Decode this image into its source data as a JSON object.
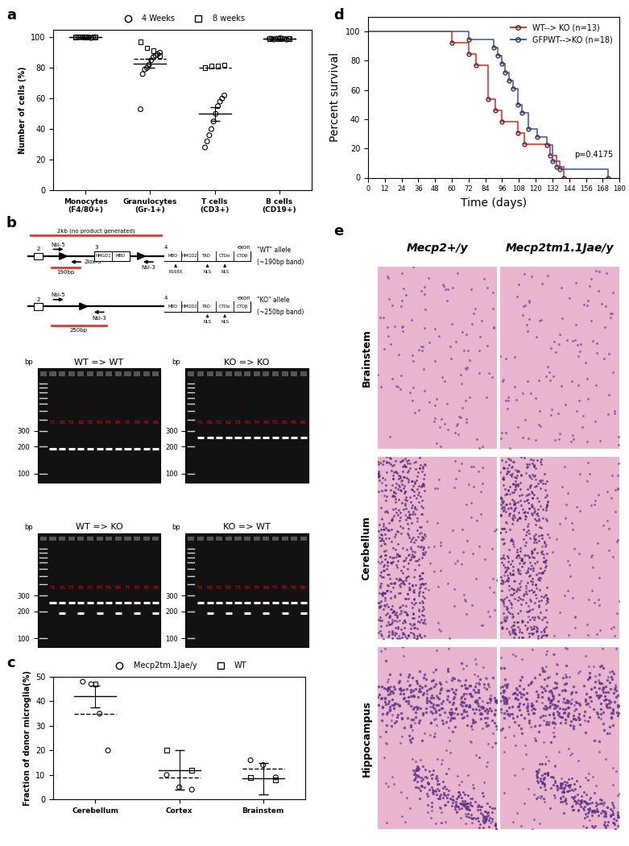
{
  "chart_data": [
    {
      "panel": "a",
      "type": "scatter",
      "categories": [
        "Monocytes (F4/80+)",
        "Granulocytes (Gr-1+)",
        "T cells (CD3+)",
        "B cells (CD19+)"
      ],
      "ylabel": "Number of cells (%)",
      "ylim": [
        0,
        105
      ],
      "yticks": [
        0,
        20,
        40,
        60,
        80,
        100
      ],
      "legend": "top",
      "series": [
        {
          "name": "4 Weeks",
          "marker": "circle",
          "color": "#000000",
          "line_style": "solid",
          "values": [
            [
              100,
              100,
              100,
              100,
              100,
              100,
              100,
              99.5,
              100,
              100
            ],
            [
              53,
              76,
              79,
              80,
              82,
              85,
              87,
              88,
              89,
              90
            ],
            [
              28,
              32,
              36,
              40,
              45,
              50,
              55,
              58,
              60,
              62
            ],
            [
              99,
              99,
              98.5,
              99,
              99,
              99.5,
              99,
              99,
              98.5,
              99
            ]
          ],
          "mean": [
            100,
            83,
            50,
            99
          ],
          "error": [
            0.2,
            3,
            4.5,
            0.3
          ]
        },
        {
          "name": "8 weeks",
          "marker": "square",
          "color": "#000000",
          "line_style": "dashed",
          "values": [
            [
              100,
              100,
              100
            ],
            [
              97,
              93,
              91,
              88
            ],
            [
              80,
              81,
              81,
              82
            ],
            [
              99,
              99,
              99
            ]
          ],
          "mean": [
            100,
            86,
            80,
            99
          ]
        }
      ]
    },
    {
      "panel": "c",
      "type": "scatter",
      "categories": [
        "Cerebellum",
        "Cortex",
        "Brainstem"
      ],
      "ylabel": "Fraction of donor microglia(%)",
      "ylim": [
        0,
        50
      ],
      "yticks": [
        0,
        10,
        20,
        30,
        40,
        50
      ],
      "legend": "top",
      "series": [
        {
          "name": "Mecp2tm.1Jae/y",
          "marker": "circle",
          "color": "#000000",
          "line_style": "solid",
          "values": [
            [
              48,
              47,
              35,
              20
            ],
            [
              10,
              5,
              4
            ],
            [
              16,
              14,
              9
            ]
          ],
          "mean": [
            42,
            12,
            8.5
          ],
          "error": [
            4.5,
            8,
            6.5
          ]
        },
        {
          "name": "WT",
          "marker": "square",
          "color": "#000000",
          "line_style": "dashed",
          "values": [
            [
              47
            ],
            [
              20,
              12
            ],
            [
              9,
              8
            ]
          ],
          "mean": [
            35,
            9,
            12.5
          ]
        }
      ]
    },
    {
      "panel": "d",
      "type": "line",
      "xlabel": "Time (days)",
      "ylabel": "Percent survival",
      "xlim": [
        0,
        180
      ],
      "xticks": [
        0,
        12,
        24,
        36,
        48,
        60,
        72,
        84,
        96,
        108,
        120,
        132,
        144,
        156,
        168,
        180
      ],
      "ylim": [
        0,
        110
      ],
      "yticks": [
        0,
        20,
        40,
        60,
        80,
        100
      ],
      "legend": "upper right",
      "annotation": "p=0.4175",
      "series": [
        {
          "name": "WT--> KO (n=13)",
          "color": "#e8352b",
          "marker": "circle",
          "line_style": "steps",
          "x": [
            0,
            60,
            72,
            77,
            86,
            91,
            96,
            107,
            112,
            130,
            135,
            140
          ],
          "values": [
            100,
            92.3,
            84.6,
            76.9,
            53.8,
            46.2,
            38.5,
            30.8,
            23.1,
            15.4,
            7.7,
            0
          ]
        },
        {
          "name": "GFPWT-->KO (n=18)",
          "color": "#4a5fb5",
          "marker": "circle",
          "line_style": "steps",
          "x": [
            0,
            72,
            90,
            93,
            96,
            98,
            101,
            104,
            107,
            110,
            115,
            121,
            128,
            132,
            137,
            172
          ],
          "values": [
            100,
            94.4,
            88.9,
            83.3,
            77.8,
            72.2,
            66.7,
            61.1,
            50,
            44.4,
            33.3,
            27.8,
            22.2,
            11.1,
            5.6,
            0
          ]
        }
      ]
    }
  ],
  "diagram_b": {
    "panel": "b",
    "no_product": "2kb (no product generated)",
    "wt_allele": [
      "\"WT\" allele",
      "(~190bp band)"
    ],
    "ko_allele": [
      "\"KO\" allele",
      "(~250bp band)"
    ],
    "primers": [
      "Nsi-5",
      "2lox-3",
      "Nsi-3"
    ],
    "wt_product": "190bp",
    "ko_product": "250bp",
    "exons": [
      "2",
      "3",
      "4"
    ],
    "exon3_domains": [
      "HMGD1",
      "MBD"
    ],
    "exon4_domains": [
      "MBD",
      "HMGD2",
      "TRD",
      "CTDα",
      "CTDβ"
    ],
    "exon_label": "exon",
    "mutation": "R168X",
    "nls": "NLS"
  },
  "gels_b": {
    "unit": "bp",
    "ylim": [
      80,
      1500
    ],
    "ladder_ticks": [
      100,
      200,
      300
    ],
    "ladder": [
      100,
      200,
      300,
      400,
      500,
      600,
      700,
      800,
      900,
      1000
    ],
    "lanes": [
      "T1",
      "B1",
      "T2",
      "B2",
      "T3",
      "B3",
      "T4",
      "B4",
      "T5",
      "B5",
      "T6",
      "B6"
    ],
    "gels": [
      {
        "title": "WT => WT",
        "bands": [
          [
            190
          ],
          [
            190
          ],
          [
            190
          ],
          [
            190
          ],
          [
            190
          ],
          [
            190
          ],
          [
            190
          ],
          [
            190
          ],
          [
            190
          ],
          [
            190
          ],
          [
            190
          ],
          [
            190
          ]
        ]
      },
      {
        "title": "KO => KO",
        "bands": [
          [
            250
          ],
          [
            250
          ],
          [
            250
          ],
          [
            250
          ],
          [
            250
          ],
          [
            250
          ],
          [
            250
          ],
          [
            250
          ],
          [
            250
          ],
          [
            250
          ],
          [
            250
          ],
          [
            250
          ]
        ]
      },
      {
        "title": "WT => KO",
        "bands": [
          [
            250
          ],
          [
            250,
            190
          ],
          [
            250
          ],
          [
            250,
            190
          ],
          [
            250
          ],
          [
            250,
            190
          ],
          [
            250
          ],
          [
            250,
            190
          ],
          [
            250
          ],
          [
            250,
            190
          ],
          [
            250
          ],
          [
            250,
            190
          ]
        ]
      },
      {
        "title": "KO => WT",
        "bands": [
          [
            250
          ],
          [
            250,
            190
          ],
          [
            250
          ],
          [
            250,
            190
          ],
          [
            250
          ],
          [
            250,
            190
          ],
          [
            250
          ],
          [
            250,
            190
          ],
          [
            250
          ],
          [
            250,
            190
          ],
          [
            250
          ],
          [
            250,
            190
          ]
        ]
      }
    ]
  },
  "histology_e": {
    "panel": "e",
    "columns": [
      "Mecp2+/y",
      "Mecp2tm1.1Jae/y"
    ],
    "rows": [
      "Brainstem",
      "Cerebellum",
      "Hippocampus"
    ]
  }
}
